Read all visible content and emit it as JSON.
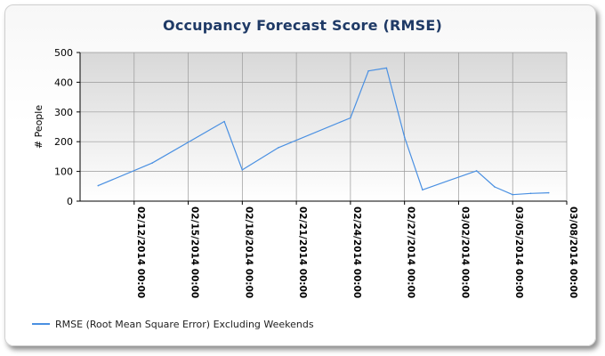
{
  "colors": {
    "title": "#1f3a66",
    "series": "#4a90e2",
    "plot_top": "#d8d8d8",
    "plot_bottom": "#ffffff",
    "grid": "#999999"
  },
  "chart_data": {
    "type": "line",
    "title": "Occupancy Forecast Score (RMSE)",
    "ylabel": "# People",
    "xlabel": "",
    "ylim": [
      0,
      500
    ],
    "yticks": [
      0,
      100,
      200,
      300,
      400,
      500
    ],
    "xlim": [
      "2014-02-09",
      "2014-03-08"
    ],
    "xtick_labels": [
      "02/12/2014 00:00",
      "02/15/2014 00:00",
      "02/18/2014 00:00",
      "02/21/2014 00:00",
      "02/24/2014 00:00",
      "02/27/2014 00:00",
      "03/02/2014 00:00",
      "03/05/2014 00:00",
      "03/08/2014 00:00"
    ],
    "grid": true,
    "legend_position": "bottom-left",
    "series": [
      {
        "name": "RMSE (Root Mean Square Error) Excluding Weekends",
        "points": [
          [
            "2014-02-10",
            52
          ],
          [
            "2014-02-13",
            128
          ],
          [
            "2014-02-17",
            268
          ],
          [
            "2014-02-18",
            105
          ],
          [
            "2014-02-20",
            180
          ],
          [
            "2014-02-24",
            280
          ],
          [
            "2014-02-25",
            438
          ],
          [
            "2014-02-26",
            448
          ],
          [
            "2014-02-27",
            215
          ],
          [
            "2014-02-28",
            38
          ],
          [
            "2014-03-03",
            102
          ],
          [
            "2014-03-04",
            48
          ],
          [
            "2014-03-05",
            22
          ],
          [
            "2014-03-06",
            26
          ],
          [
            "2014-03-07",
            28
          ]
        ]
      }
    ]
  }
}
